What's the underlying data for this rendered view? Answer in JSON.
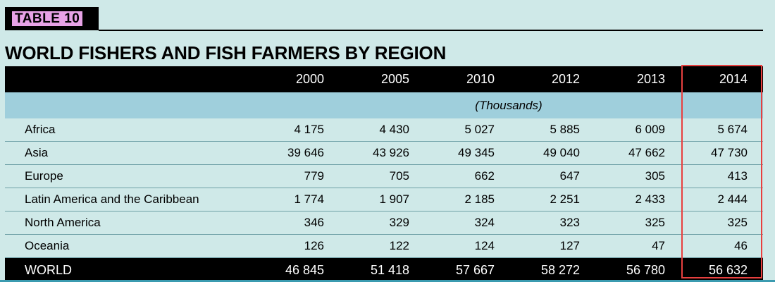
{
  "tag": "TABLE 10",
  "title": "WORLD FISHERS AND FISH FARMERS BY REGION",
  "unit": "(Thousands)",
  "years": [
    "2000",
    "2005",
    "2010",
    "2012",
    "2013",
    "2014"
  ],
  "rows": [
    {
      "region": "Africa",
      "values": [
        "4 175",
        "4 430",
        "5 027",
        "5 885",
        "6 009",
        "5 674"
      ]
    },
    {
      "region": "Asia",
      "values": [
        "39 646",
        "43 926",
        "49 345",
        "49 040",
        "47 662",
        "47 730"
      ]
    },
    {
      "region": "Europe",
      "values": [
        "779",
        "705",
        "662",
        "647",
        "305",
        "413"
      ]
    },
    {
      "region": "Latin America and the Caribbean",
      "values": [
        "1 774",
        "1 907",
        "2 185",
        "2 251",
        "2 433",
        "2 444"
      ]
    },
    {
      "region": "North America",
      "values": [
        "346",
        "329",
        "324",
        "323",
        "325",
        "325"
      ]
    },
    {
      "region": "Oceania",
      "values": [
        "126",
        "122",
        "124",
        "127",
        "47",
        "46"
      ]
    }
  ],
  "total": {
    "region": "WORLD",
    "values": [
      "46 845",
      "51 418",
      "57 667",
      "58 272",
      "56 780",
      "56 632"
    ]
  },
  "colors": {
    "background": "#cfe9e8",
    "tag_text_bg": "#e7a2e6",
    "unit_row": "#9fcfdc",
    "highlight_border": "#e8403f"
  },
  "highlighted_column": "2014"
}
